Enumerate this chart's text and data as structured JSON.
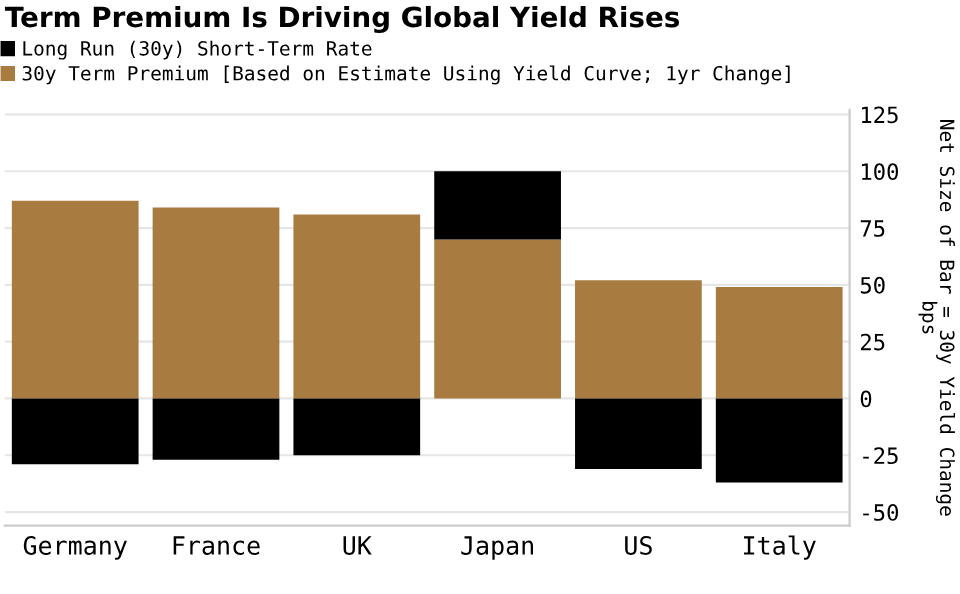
{
  "chart_data": {
    "type": "bar",
    "title": "Term Premium Is Driving Global Yield Rises",
    "ylabel": "Net Size of Bar = 30y Yield Change\nbps",
    "categories": [
      "Germany",
      "France",
      "UK",
      "Japan",
      "US",
      "Italy"
    ],
    "series": [
      {
        "name": "30y Term Premium [Based on Estimate Using Yield Curve; 1yr Change]",
        "color": "#a87b40",
        "values": [
          87,
          84,
          81,
          70,
          52,
          49
        ]
      },
      {
        "name": "Long Run (30y) Short-Term Rate",
        "color": "#000000",
        "values": [
          -29,
          -27,
          -25,
          30,
          -31,
          -37
        ]
      }
    ],
    "stacked": true,
    "ylim": [
      -56,
      127
    ],
    "yticks": [
      -50,
      -25,
      0,
      25,
      50,
      75,
      100,
      125
    ],
    "grid": "y",
    "legend": "top left"
  }
}
